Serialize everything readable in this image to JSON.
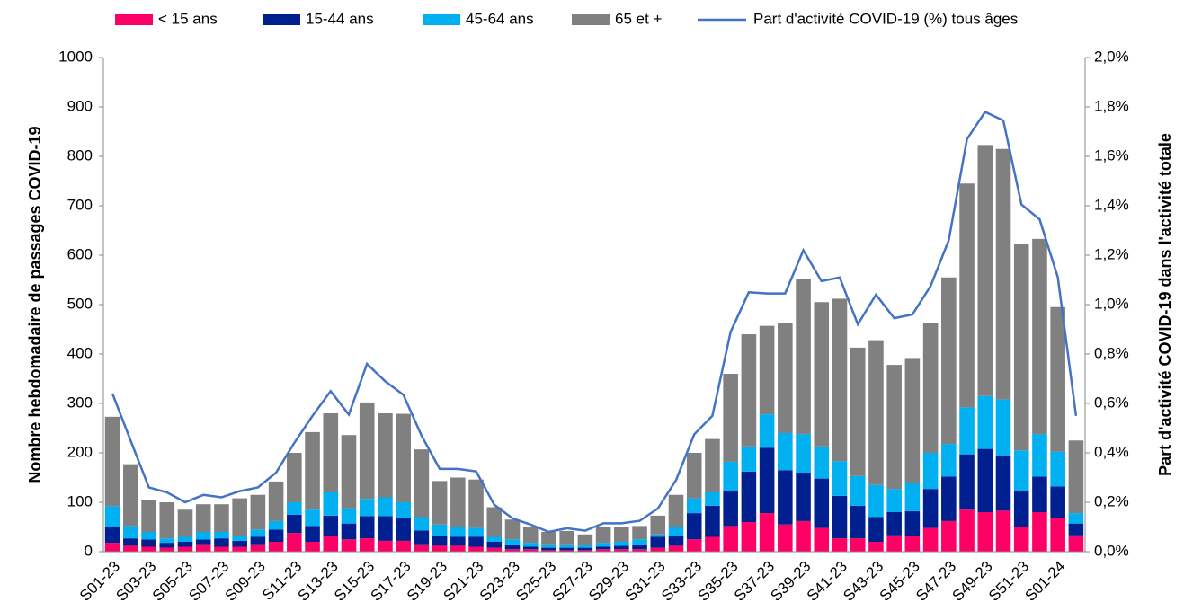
{
  "chart_data": {
    "type": "stacked-bar-line",
    "y_label": "Nombre hebdomadaire de passages COVID-19",
    "y2_label": "Part d'activité COVID-19 dans l'activité totale",
    "categories": [
      "S01-23",
      null,
      "S03-23",
      null,
      "S05-23",
      null,
      "S07-23",
      null,
      "S09-23",
      null,
      "S11-23",
      null,
      "S13-23",
      null,
      "S15-23",
      null,
      "S17-23",
      null,
      "S19-23",
      null,
      "S21-23",
      null,
      "S23-23",
      null,
      "S25-23",
      null,
      "S27-23",
      null,
      "S29-23",
      null,
      "S31-23",
      null,
      "S33-23",
      null,
      "S35-23",
      null,
      "S37-23",
      null,
      "S39-23",
      null,
      "S41-23",
      null,
      "S43-23",
      null,
      "S45-23",
      null,
      "S47-23",
      null,
      "S49-23",
      null,
      "S51-23",
      null,
      "S01-24",
      null
    ],
    "ylim": [
      0,
      1000
    ],
    "yticks": [
      0,
      100,
      200,
      300,
      400,
      500,
      600,
      700,
      800,
      900,
      1000
    ],
    "y2lim": [
      0,
      2
    ],
    "y2ticks": [
      {
        "value": 0,
        "label": "0,0%"
      },
      {
        "value": 0.2,
        "label": "0,2%"
      },
      {
        "value": 0.4,
        "label": "0,4%"
      },
      {
        "value": 0.6,
        "label": "0,6%"
      },
      {
        "value": 0.8,
        "label": "0,8%"
      },
      {
        "value": 1.0,
        "label": "1,0%"
      },
      {
        "value": 1.2,
        "label": "1,2%"
      },
      {
        "value": 1.4,
        "label": "1,4%"
      },
      {
        "value": 1.6,
        "label": "1,6%"
      },
      {
        "value": 1.8,
        "label": "1,8%"
      },
      {
        "value": 2.0,
        "label": "2,0%"
      }
    ],
    "grid": false,
    "legend": "top",
    "series": [
      {
        "name": "< 15 ans",
        "color": "#ff0066",
        "values": [
          18,
          12,
          10,
          8,
          10,
          15,
          10,
          10,
          15,
          20,
          38,
          20,
          32,
          25,
          27,
          22,
          22,
          15,
          12,
          12,
          10,
          8,
          5,
          5,
          3,
          3,
          3,
          5,
          5,
          5,
          8,
          12,
          25,
          30,
          52,
          60,
          78,
          55,
          62,
          48,
          27,
          27,
          20,
          33,
          32,
          48,
          62,
          85,
          80,
          83,
          50,
          80,
          68,
          33
        ]
      },
      {
        "name": "15-44 ans",
        "color": "#002090",
        "values": [
          32,
          15,
          15,
          10,
          10,
          10,
          17,
          12,
          15,
          25,
          37,
          32,
          41,
          32,
          45,
          50,
          46,
          28,
          20,
          18,
          20,
          12,
          10,
          5,
          5,
          5,
          5,
          5,
          7,
          10,
          22,
          20,
          53,
          63,
          71,
          102,
          132,
          110,
          98,
          100,
          86,
          66,
          50,
          47,
          50,
          79,
          90,
          112,
          128,
          112,
          73,
          72,
          64,
          24
        ]
      },
      {
        "name": "45-64 ans",
        "color": "#00b0f0",
        "values": [
          42,
          25,
          15,
          9,
          10,
          15,
          13,
          10,
          15,
          17,
          25,
          33,
          47,
          31,
          35,
          38,
          32,
          27,
          23,
          20,
          18,
          10,
          10,
          8,
          7,
          7,
          5,
          8,
          8,
          10,
          5,
          18,
          30,
          27,
          59,
          51,
          68,
          75,
          78,
          65,
          70,
          60,
          65,
          47,
          58,
          73,
          66,
          95,
          107,
          113,
          82,
          86,
          70,
          21
        ]
      },
      {
        "name": "65 et +",
        "color": "#808080",
        "values": [
          181,
          125,
          65,
          73,
          55,
          56,
          56,
          76,
          70,
          80,
          100,
          157,
          160,
          148,
          195,
          170,
          179,
          137,
          88,
          100,
          98,
          60,
          40,
          32,
          25,
          27,
          22,
          32,
          30,
          27,
          38,
          65,
          92,
          108,
          178,
          227,
          179,
          223,
          314,
          292,
          329,
          260,
          293,
          251,
          252,
          262,
          337,
          453,
          508,
          507,
          417,
          395,
          293,
          147
        ]
      },
      {
        "name": "Part d'activité COVID-19 (%) tous âges",
        "color": "#4472c4",
        "axis": "y2",
        "type": "line",
        "values": [
          0.64,
          0.45,
          0.26,
          0.24,
          0.2,
          0.23,
          0.22,
          0.245,
          0.26,
          0.32,
          0.44,
          0.55,
          0.65,
          0.555,
          0.76,
          0.69,
          0.635,
          0.47,
          0.335,
          0.335,
          0.325,
          0.19,
          0.135,
          0.11,
          0.08,
          0.095,
          0.085,
          0.115,
          0.115,
          0.125,
          0.175,
          0.29,
          0.475,
          0.55,
          0.89,
          1.05,
          1.045,
          1.045,
          1.22,
          1.095,
          1.11,
          0.92,
          1.04,
          0.945,
          0.96,
          1.075,
          1.26,
          1.67,
          1.78,
          1.745,
          1.405,
          1.345,
          1.11,
          0.55
        ]
      }
    ]
  }
}
